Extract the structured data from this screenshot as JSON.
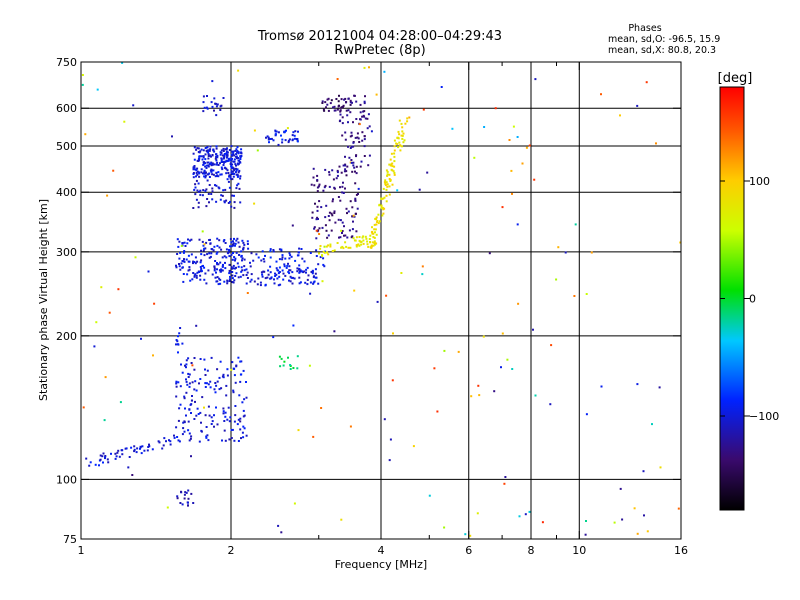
{
  "header": {
    "title_line1": "Tromsø 20121004 04:28:00–04:29:43",
    "title_line2": "RwPretec (8p)"
  },
  "phases": {
    "heading": "Phases",
    "line_o": "mean, sd,O: -96.5, 15.9",
    "line_x": "mean, sd,X:  80.8, 20.3"
  },
  "colorbar": {
    "label": "[deg]",
    "range": [
      -180,
      180
    ],
    "ticks": [
      100,
      0,
      -100
    ],
    "tick_labels": [
      "100",
      "0",
      "−100"
    ]
  },
  "chart_data": {
    "type": "scatter",
    "xlabel": "Frequency [MHz]",
    "ylabel": "Stationary phase Virtual Height [km]",
    "x_scale": "log",
    "y_scale": "log",
    "xlim": [
      1,
      16
    ],
    "ylim": [
      75,
      750
    ],
    "grid": true,
    "x_ticks": [
      1,
      2,
      4,
      6,
      8,
      10,
      16
    ],
    "x_tick_labels": [
      "1",
      "2",
      "4",
      "6",
      "8",
      "10",
      "16"
    ],
    "x_minor_ticks": [
      3,
      5,
      7,
      9
    ],
    "y_ticks": [
      75,
      100,
      200,
      300,
      400,
      500,
      600,
      750
    ],
    "y_tick_labels": [
      "75",
      "100",
      "200",
      "300",
      "400",
      "500",
      "600",
      "750"
    ],
    "x_grid": [
      2,
      4,
      6,
      8,
      10
    ],
    "y_grid": [
      100,
      200,
      300,
      400,
      500,
      600
    ],
    "clusters": [
      {
        "kind": "box",
        "f": [
          1.68,
          2.1
        ],
        "h": [
          430,
          500
        ],
        "phase": -100,
        "n": 260
      },
      {
        "kind": "box",
        "f": [
          1.68,
          2.1
        ],
        "h": [
          370,
          430
        ],
        "phase": -105,
        "n": 60
      },
      {
        "kind": "box",
        "f": [
          1.75,
          1.95
        ],
        "h": [
          580,
          640
        ],
        "phase": -105,
        "n": 20
      },
      {
        "kind": "box",
        "f": [
          2.35,
          2.75
        ],
        "h": [
          500,
          540
        ],
        "phase": -95,
        "n": 40
      },
      {
        "kind": "box",
        "f": [
          3.05,
          3.35
        ],
        "h": [
          590,
          640
        ],
        "phase": -140,
        "n": 25
      },
      {
        "kind": "box",
        "f": [
          3.3,
          3.8
        ],
        "h": [
          450,
          640
        ],
        "phase": -130,
        "n": 90
      },
      {
        "kind": "box",
        "f": [
          2.9,
          3.6
        ],
        "h": [
          320,
          450
        ],
        "phase": -130,
        "n": 110
      },
      {
        "kind": "box",
        "f": [
          1.55,
          2.2
        ],
        "h": [
          275,
          320
        ],
        "phase": -100,
        "n": 160
      },
      {
        "kind": "box",
        "f": [
          1.6,
          3.0
        ],
        "h": [
          255,
          275
        ],
        "phase": -100,
        "n": 150
      },
      {
        "kind": "box",
        "f": [
          2.2,
          3.1
        ],
        "h": [
          275,
          305
        ],
        "phase": -95,
        "n": 60
      },
      {
        "kind": "line",
        "f": [
          3.0,
          3.8
        ],
        "h": [
          300,
          320
        ],
        "phase": 80,
        "n": 50
      },
      {
        "kind": "line",
        "f": [
          3.8,
          4.45
        ],
        "h": [
          300,
          560
        ],
        "phase": 85,
        "n": 120
      },
      {
        "kind": "line",
        "f": [
          1.02,
          1.6
        ],
        "h": [
          108,
          122
        ],
        "phase": -100,
        "n": 60
      },
      {
        "kind": "box",
        "f": [
          1.55,
          2.15
        ],
        "h": [
          120,
          180
        ],
        "phase": -100,
        "n": 170
      },
      {
        "kind": "box",
        "f": [
          1.55,
          1.7
        ],
        "h": [
          88,
          95
        ],
        "phase": -110,
        "n": 18
      },
      {
        "kind": "box",
        "f": [
          2.5,
          2.75
        ],
        "h": [
          170,
          182
        ],
        "phase": -10,
        "n": 12
      },
      {
        "kind": "line",
        "f": [
          1.55,
          1.6
        ],
        "h": [
          185,
          205
        ],
        "phase": -100,
        "n": 10
      },
      {
        "kind": "noise",
        "f": [
          1,
          16
        ],
        "h": [
          75,
          750
        ],
        "phase": null,
        "n": 170
      }
    ]
  }
}
